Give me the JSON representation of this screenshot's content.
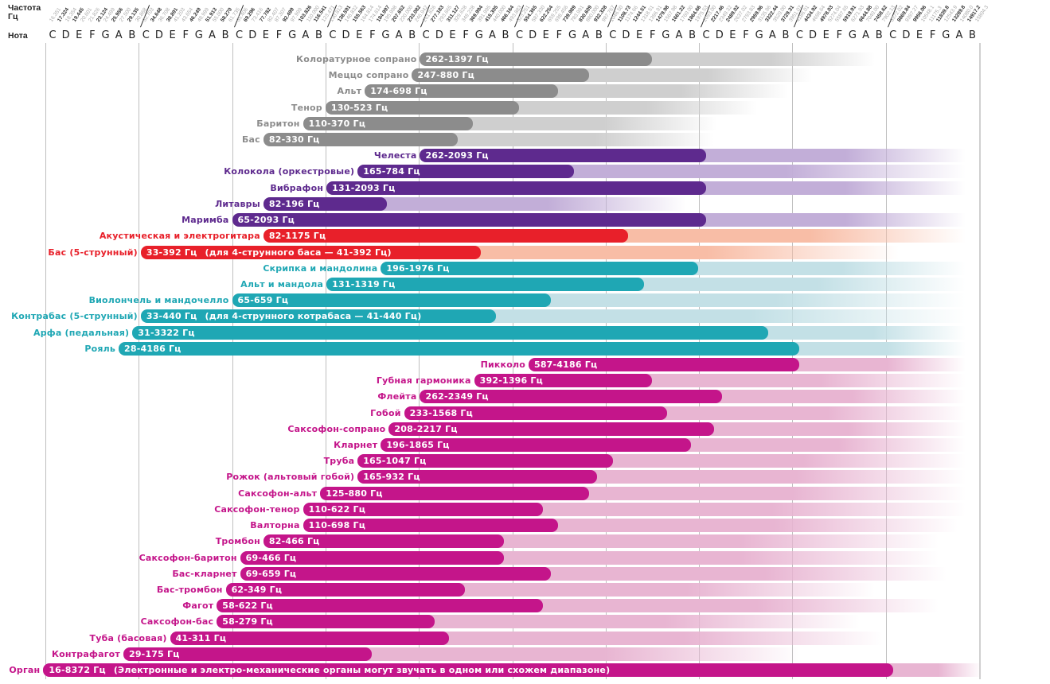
{
  "header": {
    "freq_label_line1": "Частота",
    "freq_label_line2": "Гц",
    "note_label": "Нота"
  },
  "chart_data": {
    "type": "bar",
    "title": "",
    "x_scale": "log2",
    "xlabel": "Нота",
    "x_range_hz": [
      16.35,
      15804.3
    ],
    "octave_notes": [
      "C",
      "D",
      "E",
      "F",
      "G",
      "A",
      "B"
    ],
    "octaves": 10,
    "frequency_labels": [
      [
        "16.351",
        "17.324",
        "18.354",
        "19.445",
        "20.601",
        "21.826",
        "23.124",
        "24.499",
        "25.956",
        "27.500",
        "29.135",
        "30.868"
      ],
      [
        "32.703",
        "34.648",
        "36.708",
        "38.891",
        "41.203",
        "43.654",
        "46.249",
        "48.999",
        "51.913",
        "55.000",
        "58.270",
        "61.735"
      ],
      [
        "65.406",
        "69.296",
        "73.416",
        "77.782",
        "82.407",
        "87.307",
        "92.499",
        "97.999",
        "103.826",
        "110.000",
        "116.541",
        "123.471"
      ],
      [
        "130.813",
        "138.591",
        "146.832",
        "155.563",
        "164.814",
        "174.614",
        "184.997",
        "195.998",
        "207.652",
        "220.000",
        "233.082",
        "246.942"
      ],
      [
        "261.626",
        "277.183",
        "293.665",
        "311.127",
        "329.628",
        "349.228",
        "369.994",
        "391.995",
        "415.305",
        "440.000",
        "466.164",
        "493.883"
      ],
      [
        "523.251",
        "554.365",
        "587.330",
        "622.254",
        "659.255",
        "698.456",
        "739.989",
        "783.991",
        "830.609",
        "880.000",
        "932.328",
        "987.767"
      ],
      [
        "1046.50",
        "1108.73",
        "1174.66",
        "1244.51",
        "1318.51",
        "1396.91",
        "1479.98",
        "1567.98",
        "1661.22",
        "1760.00",
        "1864.66",
        "1975.53"
      ],
      [
        "2093.00",
        "2217.46",
        "2349.32",
        "2489.02",
        "2637.02",
        "2793.83",
        "2959.96",
        "3135.96",
        "3322.44",
        "3520.00",
        "3729.31",
        "3951.07"
      ],
      [
        "4186.01",
        "4434.92",
        "4698.64",
        "4978.03",
        "5274.04",
        "5587.65",
        "5919.91",
        "6271.93",
        "6644.88",
        "7040.00",
        "7458.62",
        "7902.13"
      ],
      [
        "8372.02",
        "8869.84",
        "9397.27",
        "9956.06",
        "10548.1",
        "11175.3",
        "11839.8",
        "12543.9",
        "13289.8",
        "14080.0",
        "14917.2",
        "15804.3"
      ]
    ],
    "groups": {
      "voice": {
        "bar": "#8c8c8c",
        "tail": "#cfcfcf",
        "label": "#8c8c8c"
      },
      "percussion": {
        "bar": "#5e2a8e",
        "tail": "#c2aed8",
        "label": "#5e2a8e"
      },
      "guitar": {
        "bar": "#e8202a",
        "tail": "#f8bda6",
        "label": "#e8202a"
      },
      "strings": {
        "bar": "#1fa7b4",
        "tail": "#c3e0e6",
        "label": "#1fa7b4"
      },
      "winds": {
        "bar": "#c4158a",
        "tail": "#e8b5d2",
        "label": "#c4158a"
      }
    },
    "series": [
      {
        "name": "Колоратурное сопрано",
        "group": "voice",
        "low": 262,
        "high": 1397,
        "range_label": "262-1397 Гц",
        "tail_end_hz": 7600
      },
      {
        "name": "Меццо сопрано",
        "group": "voice",
        "low": 247,
        "high": 880,
        "range_label": "247-880 Гц",
        "tail_end_hz": 4760
      },
      {
        "name": "Альт",
        "group": "voice",
        "low": 174,
        "high": 698,
        "range_label": "174-698 Гц",
        "tail_end_hz": 3990
      },
      {
        "name": "Тенор",
        "group": "voice",
        "low": 130,
        "high": 523,
        "range_label": "130-523 Гц",
        "tail_end_hz": 3160
      },
      {
        "name": "Баритон",
        "group": "voice",
        "low": 110,
        "high": 370,
        "range_label": "110-370 Гц",
        "tail_end_hz": 2360
      },
      {
        "name": "Бас",
        "group": "voice",
        "low": 82,
        "high": 330,
        "range_label": "82-330 Гц",
        "tail_end_hz": 2300
      },
      {
        "name": "Челеста",
        "group": "percussion",
        "low": 262,
        "high": 2093,
        "range_label": "262-2093 Гц",
        "tail_end_hz": 14900
      },
      {
        "name": "Колокола (оркестровые)",
        "group": "percussion",
        "low": 165,
        "high": 784,
        "range_label": "165-784 Гц",
        "tail_end_hz": 14900
      },
      {
        "name": "Вибрафон",
        "group": "percussion",
        "low": 131,
        "high": 2093,
        "range_label": "131-2093 Гц",
        "tail_end_hz": 14900
      },
      {
        "name": "Литавры",
        "group": "percussion",
        "low": 82,
        "high": 196,
        "range_label": "82-196 Гц",
        "tail_end_hz": 1870
      },
      {
        "name": "Маримба",
        "group": "percussion",
        "low": 65,
        "high": 2093,
        "range_label": "65-2093 Гц",
        "tail_end_hz": 14900
      },
      {
        "name": "Акустическая и электрогитара",
        "group": "guitar",
        "low": 82,
        "high": 1175,
        "range_label": "82-1175 Гц",
        "tail_end_hz": 14900
      },
      {
        "name": "Бас (5-струнный)",
        "group": "guitar",
        "low": 33,
        "high": 392,
        "range_label": "33-392 Гц",
        "note": "(для 4-струнного баса — 41-392 Гц)",
        "tail_end_hz": 9060
      },
      {
        "name": "Скрипка и мандолина",
        "group": "strings",
        "low": 196,
        "high": 1976,
        "range_label": "196-1976 Гц",
        "tail_end_hz": 14900
      },
      {
        "name": "Альт и мандола",
        "group": "strings",
        "low": 131,
        "high": 1319,
        "range_label": "131-1319 Гц",
        "tail_end_hz": 14900
      },
      {
        "name": "Виолончель и мандочелло",
        "group": "strings",
        "low": 65,
        "high": 659,
        "range_label": "65-659 Гц",
        "tail_end_hz": 14900
      },
      {
        "name": "Контрабас (5-струнный)",
        "group": "strings",
        "low": 33,
        "high": 440,
        "range_label": "33-440 Гц",
        "note": "(для 4-струнного котрабаса — 41-440 Гц)",
        "tail_end_hz": 14900
      },
      {
        "name": "Арфа (педальная)",
        "group": "strings",
        "low": 31,
        "high": 3322,
        "range_label": "31-3322 Гц",
        "tail_end_hz": 14900
      },
      {
        "name": "Рояль",
        "group": "strings",
        "low": 28,
        "high": 4186,
        "range_label": "28-4186 Гц",
        "tail_end_hz": 14900
      },
      {
        "name": "Пикколо",
        "group": "winds",
        "low": 587,
        "high": 4186,
        "range_label": "587-4186 Гц",
        "tail_end_hz": 14900
      },
      {
        "name": "Губная гармоника",
        "group": "winds",
        "low": 392,
        "high": 1396,
        "range_label": "392-1396 Гц",
        "tail_end_hz": 14900
      },
      {
        "name": "Флейта",
        "group": "winds",
        "low": 262,
        "high": 2349,
        "range_label": "262-2349 Гц",
        "tail_end_hz": 14900
      },
      {
        "name": "Гобой",
        "group": "winds",
        "low": 233,
        "high": 1568,
        "range_label": "233-1568 Гц",
        "tail_end_hz": 14900
      },
      {
        "name": "Саксофон-сопрано",
        "group": "winds",
        "low": 208,
        "high": 2217,
        "range_label": "208-2217 Гц",
        "tail_end_hz": 14900
      },
      {
        "name": "Кларнет",
        "group": "winds",
        "low": 196,
        "high": 1865,
        "range_label": "196-1865 Гц",
        "tail_end_hz": 14900
      },
      {
        "name": "Труба",
        "group": "winds",
        "low": 165,
        "high": 1047,
        "range_label": "165-1047 Гц",
        "tail_end_hz": 14900
      },
      {
        "name": "Рожок (альтовый гобой)",
        "group": "winds",
        "low": 165,
        "high": 932,
        "range_label": "165-932 Гц",
        "tail_end_hz": 14900
      },
      {
        "name": "Саксофон-альт",
        "group": "winds",
        "low": 125,
        "high": 880,
        "range_label": "125-880 Гц",
        "tail_end_hz": 14900
      },
      {
        "name": "Саксофон-тенор",
        "group": "winds",
        "low": 110,
        "high": 622,
        "range_label": "110-622 Гц",
        "tail_end_hz": 14900
      },
      {
        "name": "Валторна",
        "group": "winds",
        "low": 110,
        "high": 698,
        "range_label": "110-698 Гц",
        "tail_end_hz": 14060
      },
      {
        "name": "Тромбон",
        "group": "winds",
        "low": 82,
        "high": 466,
        "range_label": "82-466 Гц",
        "tail_end_hz": 12150
      },
      {
        "name": "Саксофон-баритон",
        "group": "winds",
        "low": 69,
        "high": 466,
        "range_label": "69-466 Гц",
        "tail_end_hz": 12150
      },
      {
        "name": "Бас-кларнет",
        "group": "winds",
        "low": 69,
        "high": 659,
        "range_label": "69-659 Гц",
        "tail_end_hz": 12880
      },
      {
        "name": "Бас-тромбон",
        "group": "winds",
        "low": 62,
        "high": 349,
        "range_label": "62-349 Гц",
        "tail_end_hz": 7600
      },
      {
        "name": "Фагот",
        "group": "winds",
        "low": 58,
        "high": 622,
        "range_label": "58-622 Гц",
        "tail_end_hz": 12150
      },
      {
        "name": "Саксофон-бас",
        "group": "winds",
        "low": 58,
        "high": 279,
        "range_label": "58-279 Гц",
        "tail_end_hz": 6770
      },
      {
        "name": "Туба (басовая)",
        "group": "winds",
        "low": 41,
        "high": 311,
        "range_label": "41-311 Гц",
        "tail_end_hz": 8060
      },
      {
        "name": "Контрафагот",
        "group": "winds",
        "low": 29,
        "high": 175,
        "range_label": "29-175 Гц",
        "tail_end_hz": 4360
      },
      {
        "name": "Орган",
        "group": "winds",
        "low": 16,
        "high": 8372,
        "range_label": "16-8372 Гц",
        "note": "(Электронные и электро-механические органы могут звучать в одном или схожем диапазоне)",
        "tail_end_hz": 16740
      }
    ]
  }
}
